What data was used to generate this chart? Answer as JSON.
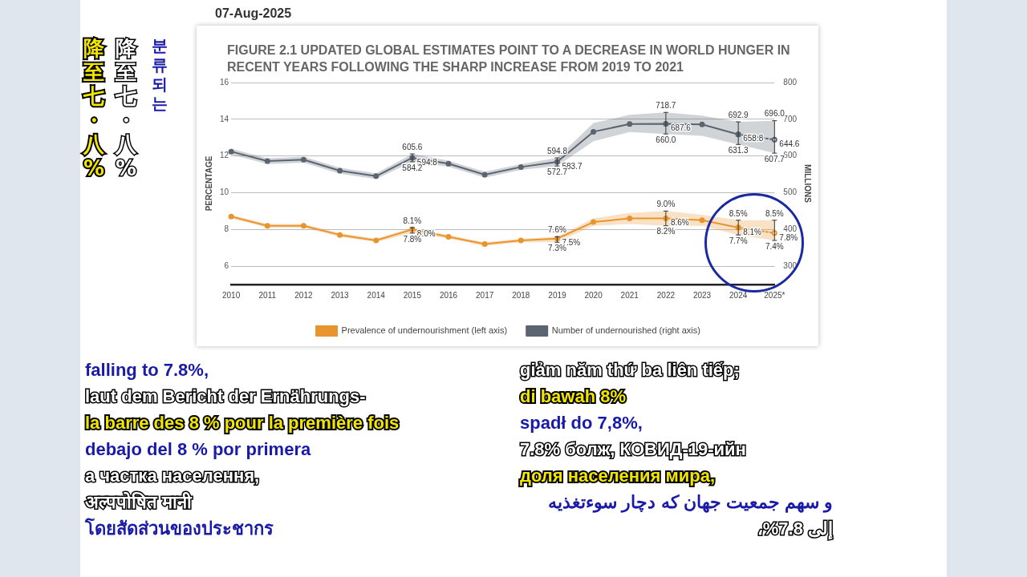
{
  "chart_data": {
    "type": "line",
    "title": "FIGURE 2.1 UPDATED GLOBAL ESTIMATES POINT TO A DECREASE IN WORLD HUNGER IN RECENT YEARS FOLLOWING THE SHARP INCREASE FROM 2019 TO 2021",
    "ylabel": "PERCENTAGE",
    "y2label": "MILLIONS",
    "categories": [
      "2010",
      "2011",
      "2012",
      "2013",
      "2014",
      "2015",
      "2016",
      "2017",
      "2018",
      "2019",
      "2020",
      "2021",
      "2022",
      "2023",
      "2024",
      "2025*"
    ],
    "series": [
      {
        "name": "Prevalence of undernourishment (left axis)",
        "color": "#e8952f",
        "values": [
          8.7,
          8.2,
          8.2,
          7.7,
          7.4,
          8.0,
          7.6,
          7.2,
          7.4,
          7.5,
          8.4,
          8.6,
          8.6,
          8.5,
          8.1,
          null
        ],
        "lower": [
          8.6,
          8.1,
          8.1,
          7.6,
          7.3,
          7.8,
          7.5,
          7.1,
          7.3,
          7.3,
          8.2,
          8.3,
          8.2,
          8.2,
          7.7,
          7.4
        ],
        "upper": [
          8.8,
          8.3,
          8.3,
          7.8,
          7.5,
          8.1,
          7.7,
          7.3,
          7.5,
          7.6,
          8.6,
          8.9,
          9.0,
          8.8,
          8.5,
          8.5
        ],
        "errors": [
          null,
          null,
          null,
          null,
          null,
          [
            7.8,
            8.1
          ],
          null,
          null,
          null,
          [
            7.3,
            7.6
          ],
          null,
          null,
          [
            8.2,
            9.0
          ],
          null,
          [
            7.7,
            8.5
          ],
          null
        ],
        "value_labels": [
          null,
          null,
          null,
          null,
          null,
          "8.0%",
          null,
          null,
          null,
          "7.5%",
          null,
          null,
          "8.6%",
          null,
          "8.1%",
          null
        ]
      },
      {
        "color": "#e8952f",
        "line_style": "dotted",
        "values": [
          null,
          null,
          null,
          null,
          null,
          null,
          null,
          null,
          null,
          null,
          null,
          null,
          null,
          null,
          8.1,
          7.8
        ],
        "errors": [
          null,
          null,
          null,
          null,
          null,
          null,
          null,
          null,
          null,
          null,
          null,
          null,
          null,
          null,
          null,
          [
            7.4,
            8.5
          ]
        ],
        "value_labels": [
          null,
          null,
          null,
          null,
          null,
          null,
          null,
          null,
          null,
          null,
          null,
          null,
          null,
          null,
          null,
          "7.8%"
        ]
      },
      {
        "name": "Number of undernourished (right axis)",
        "color": "#5b6470",
        "axis": "y2",
        "values": [
          612,
          586,
          590,
          560,
          545,
          594.8,
          579,
          549,
          570,
          583.7,
          666,
          687,
          687.6,
          686,
          658.8,
          null
        ],
        "lower": [
          604,
          578,
          582,
          552,
          537,
          584.2,
          571,
          541,
          562,
          572.7,
          640,
          665,
          660.0,
          655,
          631.3,
          607.7
        ],
        "upper": [
          620,
          594,
          598,
          568,
          553,
          605.6,
          587,
          557,
          578,
          594.8,
          690,
          712,
          718.7,
          710,
          692.9,
          696.0
        ],
        "errors": [
          null,
          null,
          null,
          null,
          null,
          [
            584.2,
            605.6
          ],
          null,
          null,
          null,
          [
            572.7,
            594.8
          ],
          null,
          null,
          [
            660.0,
            718.7
          ],
          null,
          [
            631.3,
            692.9
          ],
          null
        ],
        "value_labels": [
          null,
          null,
          null,
          null,
          null,
          "594.8",
          null,
          null,
          null,
          "583.7",
          null,
          null,
          "687.6",
          null,
          "658.8",
          null
        ]
      },
      {
        "color": "#5b6470",
        "axis": "y2",
        "line_style": "dotted",
        "values": [
          null,
          null,
          null,
          null,
          null,
          null,
          null,
          null,
          null,
          null,
          null,
          null,
          null,
          null,
          658.8,
          644.6
        ],
        "errors": [
          null,
          null,
          null,
          null,
          null,
          null,
          null,
          null,
          null,
          null,
          null,
          null,
          null,
          null,
          null,
          [
            607.7,
            696.0
          ]
        ],
        "value_labels": [
          null,
          null,
          null,
          null,
          null,
          null,
          null,
          null,
          null,
          null,
          null,
          null,
          null,
          null,
          null,
          "644.6"
        ]
      }
    ],
    "ylim": [
      5,
      16
    ],
    "yticks": [
      6,
      8,
      10,
      12,
      14,
      16
    ],
    "y2lim": [
      250,
      800
    ],
    "y2ticks": [
      300,
      400,
      500,
      600,
      700,
      800
    ],
    "grid": "y",
    "legend": "bottom",
    "marker": "circle",
    "annotations": [
      "07-Aug-2025",
      "降至七・八%",
      "降至七・八%",
      "분류되는",
      "falling to 7.8%,",
      "laut dem Bericht der Ernährungs-",
      "la barre des 8 % pour la première fois",
      "debajo del 8 % por primera",
      "а частка населення,",
      "अल्पपोषित मानी",
      "โดยสัดส่วนของประชากร",
      "giảm năm thứ ba liên tiếp;",
      "di bawah 8%",
      "spadł do 7,8%,",
      "7.8% болж, КОВИД-19-ийн",
      "доля населения мира,",
      "و سهم جمعیت جهان که دچار سوءتغذیه",
      "إلى 7.8%،",
      {
        "text": "8.1%",
        "x": "2015",
        "y": 8.1
      },
      {
        "text": "7.8%",
        "x": "2015",
        "y": 7.8
      },
      {
        "text": "7.6%",
        "x": "2019",
        "y": 7.6
      },
      {
        "text": "7.3%",
        "x": "2019",
        "y": 7.3
      },
      {
        "text": "9.0%",
        "x": "2022",
        "y": 9.0
      },
      {
        "text": "8.2%",
        "x": "2022",
        "y": 8.2
      },
      {
        "text": "8.5%",
        "x": "2024",
        "y": 8.5
      },
      {
        "text": "7.7%",
        "x": "2024",
        "y": 7.7
      },
      {
        "text": "8.5%",
        "x": "2025*",
        "y": 8.5
      },
      {
        "text": "7.4%",
        "x": "2025*",
        "y": 7.4
      },
      "605.6",
      "584.2",
      "594.8",
      "572.7",
      "718.7",
      "660.0",
      "692.9",
      "631.3",
      "696.0",
      "607.7"
    ]
  }
}
